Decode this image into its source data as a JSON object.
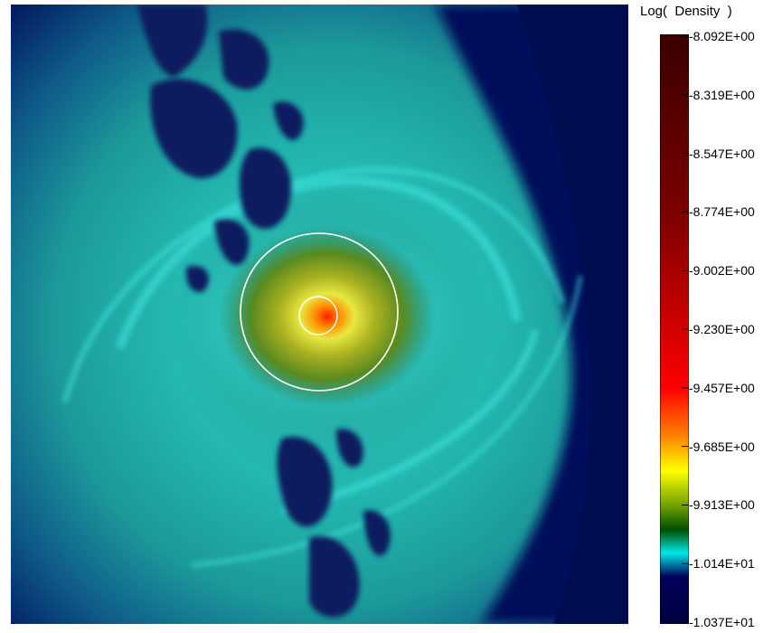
{
  "colorbar": {
    "title": "Log(  Density  )",
    "ticks": [
      "-8.092E+00",
      "-8.319E+00",
      "-8.547E+00",
      "-8.774E+00",
      "-9.002E+00",
      "-9.230E+00",
      "-9.457E+00",
      "-9.685E+00",
      "-9.913E+00",
      "-1.014E+01",
      "-1.037E+01"
    ],
    "colors": {
      "top": "#3a0000",
      "dark_red": "#7a0000",
      "red": "#ff0000",
      "orange": "#ff8000",
      "yellow": "#ffff00",
      "olive": "#6fa000",
      "green": "#005000",
      "cyan": "#00e8e8",
      "navy": "#00005a",
      "bottom": "#000040"
    }
  },
  "image": {
    "description_icon": "density-field-image"
  }
}
